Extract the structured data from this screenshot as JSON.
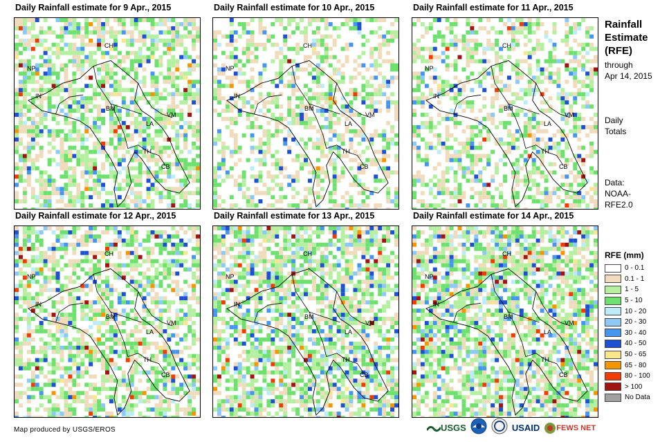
{
  "panels": [
    {
      "title": "Daily Rainfall estimate for 9 Apr., 2015"
    },
    {
      "title": "Daily Rainfall estimate for 10 Apr., 2015"
    },
    {
      "title": "Daily Rainfall estimate for 11 Apr., 2015"
    },
    {
      "title": "Daily Rainfall estimate for 12 Apr., 2015"
    },
    {
      "title": "Daily Rainfall estimate for 13 Apr., 2015"
    },
    {
      "title": "Daily Rainfall estimate for 14 Apr., 2015"
    }
  ],
  "country_labels": {
    "ch": "CH",
    "np": "NP",
    "in": "IN",
    "bm": "BM",
    "la": "LA",
    "vm": "VM",
    "th": "TH",
    "cb": "CB"
  },
  "side": {
    "title_line1": "Rainfall",
    "title_line2": "Estimate",
    "title_line3": "(RFE)",
    "through": "through",
    "date": "Apr 14, 2015",
    "daily": "Daily",
    "totals": "Totals",
    "data_label": "Data:",
    "source1": "NOAA-",
    "source2": "RFE2.0"
  },
  "legend": {
    "title": "RFE (mm)",
    "items": [
      {
        "label": "0 - 0.1",
        "color": "#ffffff"
      },
      {
        "label": "0.1 - 1",
        "color": "#f0dcbc"
      },
      {
        "label": "1 - 5",
        "color": "#b4f0a0"
      },
      {
        "label": "5 - 10",
        "color": "#6ee06e"
      },
      {
        "label": "10 - 20",
        "color": "#bcecf8"
      },
      {
        "label": "20 - 30",
        "color": "#8cc8f8"
      },
      {
        "label": "30 - 40",
        "color": "#4696f0"
      },
      {
        "label": "40 - 50",
        "color": "#1e50d2"
      },
      {
        "label": "50 - 65",
        "color": "#fae68c"
      },
      {
        "label": "65 - 80",
        "color": "#f59600"
      },
      {
        "label": "80 - 100",
        "color": "#f03c00"
      },
      {
        "label": "> 100",
        "color": "#a01414"
      },
      {
        "label": "No Data",
        "color": "#a0a0a0"
      }
    ]
  },
  "credit": "Map produced by USGS/EROS",
  "logos": {
    "usgs": "USGS",
    "usaid": "USAID",
    "fewsnet": "FEWS NET"
  }
}
